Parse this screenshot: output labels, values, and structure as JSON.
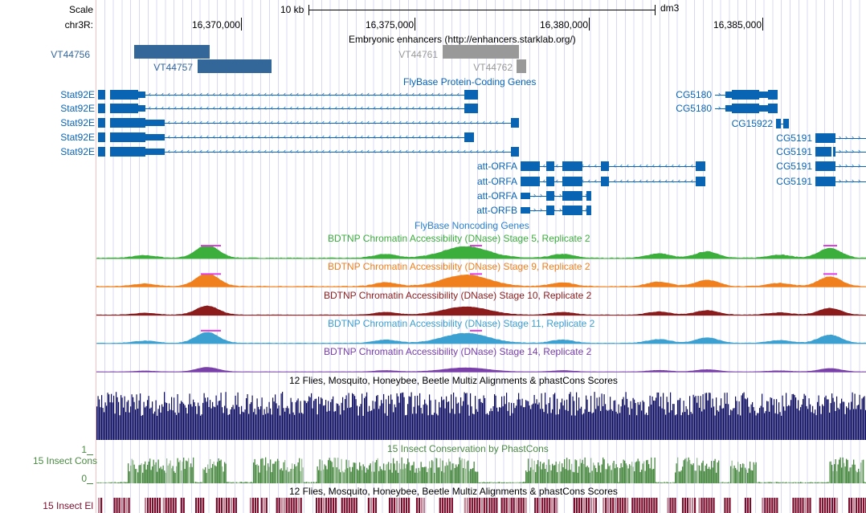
{
  "scale": {
    "label": "Scale",
    "size": "10 kb",
    "assembly": "dm3"
  },
  "ruler": {
    "chrom": "chr3R:",
    "ticks": [
      "16,370,000",
      "16,375,000",
      "16,380,000",
      "16,385,000"
    ]
  },
  "enhancers": {
    "title": "Embryonic enhancers (http://enhancers.starklab.org/)",
    "items": [
      "VT44756",
      "VT44757",
      "VT44761",
      "VT44762"
    ],
    "color": "#336699",
    "gray": "#999999"
  },
  "protein_genes": {
    "title": "FlyBase Protein-Coding Genes",
    "color": "#0a64b4",
    "labels": [
      "Stat92E",
      "Stat92E",
      "Stat92E",
      "Stat92E",
      "Stat92E",
      "CG5180",
      "CG5180",
      "CG15922",
      "CG5191",
      "CG5191",
      "CG5191",
      "CG5191",
      "att-ORFA",
      "att-ORFA",
      "att-ORFA",
      "att-ORFB"
    ]
  },
  "noncoding_genes": {
    "title": "FlyBase Noncoding Genes"
  },
  "dnase": [
    {
      "title": "BDTNP Chromatin Accessibility (DNase) Stage 5, Replicate 2",
      "color": "#3cae3c"
    },
    {
      "title": "BDTNP Chromatin Accessibility (DNase) Stage 9, Replicate 2",
      "color": "#f0801e"
    },
    {
      "title": "BDTNP Chromatin Accessibility (DNase) Stage 10, Replicate 2",
      "color": "#8c1c1c"
    },
    {
      "title": "BDTNP Chromatin Accessibility (DNase) Stage 11, Replicate 2",
      "color": "#3ca0d0"
    },
    {
      "title": "BDTNP Chromatin Accessibility (DNase) Stage 14, Replicate 2",
      "color": "#7840a8"
    }
  ],
  "multiz": {
    "title": "12 Flies, Mosquito, Honeybee, Beetle Multiz Alignments & phastCons Scores",
    "color": "#0c0c60"
  },
  "phastcons": {
    "title": "15 Insect Conservation by PhastCons",
    "label": "15 Insect Cons",
    "ymax": "1",
    "ymin": "0",
    "color": "#4a8a42"
  },
  "elements": {
    "title": "12 Flies, Mosquito, Honeybee, Beetle Multiz Alignments & phastCons Scores",
    "label": "15 Insect El",
    "color": "#7a0c2c"
  }
}
